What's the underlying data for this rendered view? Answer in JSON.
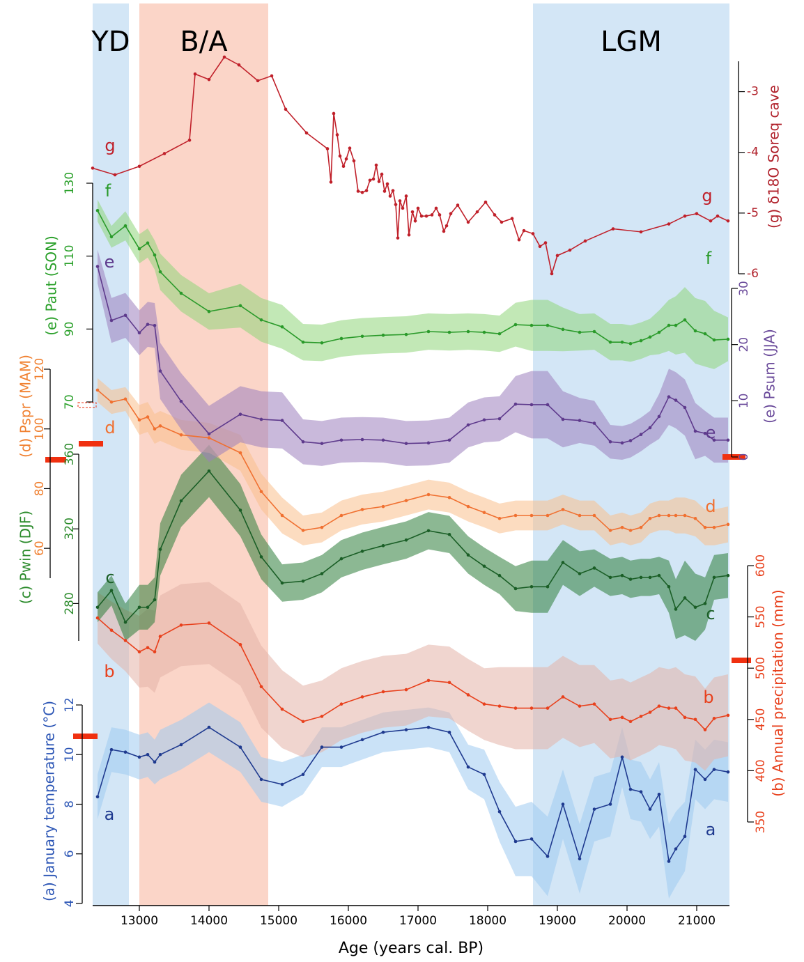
{
  "chart_data": {
    "type": "line",
    "xlabel": "Age (years cal. BP)",
    "xlim": [
      12330,
      21470
    ],
    "xticks": [
      13000,
      14000,
      15000,
      16000,
      17000,
      18000,
      19000,
      20000,
      21000
    ],
    "regions": [
      {
        "label": "YD",
        "start": 12330,
        "end": 12850,
        "color": "#d3e6f6"
      },
      {
        "label": "B/A",
        "start": 13000,
        "end": 14850,
        "color": "#fbd5c8"
      },
      {
        "label": "LGM",
        "start": 18650,
        "end": 21470,
        "color": "#d3e6f6"
      }
    ],
    "x": [
      12400,
      12600,
      12800,
      13000,
      13120,
      13220,
      13300,
      13600,
      14000,
      14450,
      14750,
      15050,
      15350,
      15620,
      15900,
      16200,
      16500,
      16830,
      17150,
      17450,
      17720,
      17950,
      18170,
      18400,
      18630,
      18860,
      19080,
      19320,
      19530,
      19760,
      19930,
      20050,
      20200,
      20330,
      20460,
      20600,
      20700,
      20830,
      20980,
      21120,
      21250,
      21450
    ],
    "panels": [
      {
        "label": "(a) January temperature (°C)",
        "color": "#2b55b5",
        "side": "left",
        "ylim": [
          4,
          12
        ],
        "yticks": [
          4,
          6,
          8,
          10,
          12
        ],
        "series": {
          "name": "a",
          "color": "#1f3a8f",
          "band_color": "#9fcbf0",
          "values": [
            8.3,
            10.2,
            10.1,
            9.9,
            10.0,
            9.7,
            10.0,
            10.4,
            11.1,
            10.3,
            9.0,
            8.8,
            9.2,
            10.3,
            10.3,
            10.6,
            10.9,
            11.0,
            11.1,
            10.9,
            9.5,
            9.2,
            7.7,
            6.5,
            6.6,
            5.9,
            8.0,
            5.8,
            7.8,
            8.0,
            9.9,
            8.6,
            8.5,
            7.8,
            8.4,
            5.7,
            6.2,
            6.7,
            9.4,
            9.0,
            9.4,
            9.3
          ],
          "errors": [
            0.9,
            0.9,
            0.9,
            0.9,
            0.9,
            0.9,
            1.0,
            1.0,
            1.0,
            1.0,
            0.9,
            0.9,
            0.8,
            0.8,
            0.8,
            0.8,
            0.8,
            0.8,
            0.8,
            0.8,
            0.9,
            1.0,
            1.2,
            1.4,
            1.5,
            1.6,
            1.4,
            1.4,
            1.3,
            1.3,
            1.2,
            1.2,
            1.2,
            1.2,
            1.3,
            1.5,
            1.5,
            1.4,
            1.2,
            1.2,
            1.2,
            1.2
          ]
        }
      },
      {
        "label": "(b) Annual precipitation (mm)",
        "color": "#e8401c",
        "side": "right",
        "ylim": [
          350,
          600
        ],
        "yticks": [
          350,
          400,
          450,
          500,
          550,
          600
        ],
        "series": {
          "name": "b",
          "color": "#e8401c",
          "band_color": "#e3b2a8",
          "values": [
            549,
            537,
            527,
            516,
            520,
            516,
            531,
            542,
            544,
            523,
            482,
            460,
            448,
            453,
            465,
            472,
            477,
            479,
            488,
            486,
            474,
            465,
            463,
            461,
            461,
            461,
            472,
            463,
            465,
            450,
            452,
            448,
            453,
            457,
            463,
            461,
            461,
            452,
            450,
            440,
            451,
            454
          ],
          "errors": [
            25,
            28,
            30,
            35,
            38,
            40,
            40,
            40,
            40,
            40,
            40,
            38,
            35,
            35,
            35,
            35,
            35,
            35,
            35,
            35,
            35,
            35,
            38,
            40,
            40,
            40,
            40,
            40,
            38,
            38,
            38,
            38,
            38,
            38,
            38,
            38,
            40,
            42,
            42,
            40,
            40,
            40
          ]
        }
      },
      {
        "label": "(c) Pwin (DJF)",
        "color": "#2a8a2a",
        "side": "left",
        "ylim": [
          260,
          360
        ],
        "yticks": [
          280,
          320,
          360
        ],
        "series": {
          "name": "c",
          "color": "#1a5e26",
          "band_color": "#2e7d3a",
          "values": [
            278,
            287,
            270,
            278,
            278,
            282,
            309,
            335,
            351,
            330,
            305,
            291,
            292,
            296,
            304,
            308,
            311,
            314,
            319,
            317,
            306,
            300,
            295,
            288,
            289,
            289,
            302,
            296,
            299,
            294,
            295,
            293,
            294,
            294,
            295,
            289,
            277,
            283,
            278,
            280,
            294,
            295
          ],
          "errors": [
            8,
            8,
            10,
            12,
            12,
            12,
            14,
            14,
            14,
            14,
            12,
            10,
            10,
            10,
            10,
            10,
            10,
            10,
            10,
            10,
            10,
            10,
            10,
            12,
            14,
            14,
            12,
            12,
            10,
            10,
            10,
            10,
            10,
            10,
            10,
            14,
            16,
            20,
            18,
            14,
            12,
            12
          ]
        }
      },
      {
        "label": "(d) Pspr (MAM)",
        "color": "#f08030",
        "side": "left",
        "ylim": [
          50,
          120
        ],
        "yticks": [
          60,
          80,
          100,
          120
        ],
        "series": {
          "name": "d",
          "color": "#f07030",
          "band_color": "#f9c08c",
          "values": [
            113,
            109,
            110,
            103,
            104,
            100,
            101,
            98,
            97,
            92,
            79,
            71,
            66,
            67,
            71,
            73,
            74,
            76,
            78,
            77,
            74,
            72,
            70,
            71,
            71,
            71,
            73,
            71,
            71,
            66,
            67,
            66,
            67,
            70,
            71,
            71,
            71,
            71,
            70,
            67,
            67,
            68
          ],
          "errors": [
            4,
            4,
            4,
            5,
            5,
            5,
            5,
            5,
            5,
            6,
            6,
            6,
            5,
            5,
            5,
            5,
            5,
            5,
            5,
            5,
            5,
            5,
            5,
            5,
            5,
            5,
            5,
            5,
            5,
            5,
            5,
            5,
            5,
            5,
            5,
            5,
            6,
            6,
            6,
            6,
            6,
            6
          ]
        }
      },
      {
        "label": "(e) Psum (JJA)",
        "color": "#6a4a9a",
        "side": "right",
        "ylim": [
          0,
          30
        ],
        "yticks": [
          0,
          10,
          20,
          30
        ],
        "series": {
          "name": "e",
          "color": "#5e3a8c",
          "band_color": "#9c80bd",
          "values": [
            33.9,
            24.3,
            25.2,
            22.1,
            23.6,
            23.4,
            15.3,
            9.9,
            4.1,
            7.6,
            6.7,
            6.5,
            2.7,
            2.4,
            3.0,
            3.1,
            3.0,
            2.4,
            2.5,
            3.0,
            5.7,
            6.6,
            6.8,
            9.4,
            9.3,
            9.3,
            6.7,
            6.5,
            6.0,
            2.7,
            2.5,
            2.9,
            4.0,
            5.2,
            7.2,
            10.7,
            10.1,
            8.8,
            4.6,
            4.2,
            3.0,
            3.0
          ],
          "errors": [
            3,
            4,
            4,
            4,
            4,
            4,
            5,
            5,
            5,
            5,
            5,
            5,
            4,
            4,
            4,
            4,
            4,
            4,
            4,
            4,
            4,
            4,
            4,
            5,
            6,
            6,
            5,
            4,
            4,
            3,
            3,
            3,
            3,
            3,
            4,
            5,
            5,
            5,
            5,
            4,
            4,
            4
          ]
        }
      },
      {
        "label": "(e) Paut (SON)",
        "color": "#2aa02a",
        "side": "left",
        "ylim": [
          70,
          130
        ],
        "yticks": [
          70,
          90,
          110,
          130
        ],
        "series": {
          "name": "f",
          "color": "#2a9a2a",
          "band_color": "#8fd67a",
          "values": [
            122.5,
            115.3,
            118.3,
            112.0,
            113.6,
            110.3,
            105.7,
            99.8,
            94.8,
            96.4,
            92.5,
            90.6,
            86.4,
            86.2,
            87.4,
            88.0,
            88.3,
            88.5,
            89.3,
            89.1,
            89.3,
            89.1,
            88.7,
            91.2,
            91.0,
            91.0,
            89.9,
            89.1,
            89.3,
            86.4,
            86.4,
            86.0,
            86.8,
            87.8,
            89.1,
            91.0,
            91.0,
            92.5,
            89.5,
            88.7,
            87.0,
            87.2
          ],
          "errors": [
            3,
            3,
            4,
            4,
            4,
            4,
            5,
            5,
            5,
            6,
            6,
            6,
            5,
            5,
            5,
            5,
            5,
            5,
            5,
            5,
            5,
            5,
            5,
            6,
            7,
            7,
            6,
            5,
            5,
            5,
            5,
            5,
            5,
            5,
            6,
            7,
            8,
            9,
            9,
            9,
            8,
            6
          ]
        }
      },
      {
        "label": "(g) δ18O Soreq cave",
        "color": "#b0202a",
        "side": "right",
        "ylim": [
          -6,
          -2.5
        ],
        "yticks": [
          -6,
          -5,
          -4,
          -3
        ],
        "series": {
          "name": "g",
          "color": "#c0202a",
          "x": [
            12330,
            12650,
            13000,
            13360,
            13720,
            13800,
            14000,
            14220,
            14430,
            14700,
            14900,
            15100,
            15400,
            15700,
            15750,
            15790,
            15840,
            15880,
            15930,
            15970,
            16020,
            16080,
            16140,
            16200,
            16260,
            16310,
            16360,
            16400,
            16440,
            16480,
            16520,
            16560,
            16600,
            16640,
            16680,
            16710,
            16740,
            16780,
            16830,
            16870,
            16920,
            16960,
            17000,
            17050,
            17120,
            17200,
            17260,
            17310,
            17370,
            17410,
            17470,
            17570,
            17720,
            17850,
            17970,
            18100,
            18200,
            18350,
            18450,
            18520,
            18650,
            18750,
            18830,
            18920,
            19000,
            19180,
            19400,
            19800,
            20200,
            20600,
            20830,
            21000,
            21200,
            21300,
            21450
          ],
          "values": [
            -4.26,
            -4.37,
            -4.23,
            -4.02,
            -3.8,
            -2.71,
            -2.8,
            -2.43,
            -2.56,
            -2.82,
            -2.74,
            -3.29,
            -3.68,
            -3.94,
            -4.49,
            -3.36,
            -3.71,
            -4.06,
            -4.23,
            -4.11,
            -3.93,
            -4.14,
            -4.64,
            -4.66,
            -4.63,
            -4.46,
            -4.44,
            -4.21,
            -4.48,
            -4.36,
            -4.64,
            -4.52,
            -4.72,
            -4.63,
            -4.86,
            -5.41,
            -4.8,
            -4.92,
            -4.72,
            -5.36,
            -4.98,
            -5.13,
            -4.92,
            -5.05,
            -5.05,
            -5.03,
            -4.92,
            -5.03,
            -5.3,
            -5.21,
            -5.01,
            -4.87,
            -5.15,
            -4.98,
            -4.82,
            -5.03,
            -5.15,
            -5.09,
            -5.44,
            -5.29,
            -5.34,
            -5.55,
            -5.49,
            -6.0,
            -5.7,
            -5.61,
            -5.46,
            -5.26,
            -5.31,
            -5.18,
            -5.05,
            -5.01,
            -5.13,
            -5.05,
            -5.13
          ]
        }
      }
    ]
  }
}
